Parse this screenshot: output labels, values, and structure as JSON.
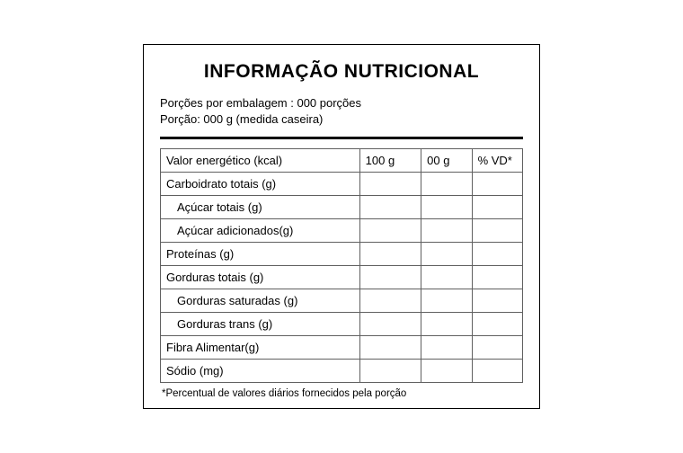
{
  "title": "INFORMAÇÃO NUTRICIONAL",
  "serving": {
    "line1": "Porções por embalagem : 000 porções",
    "line2": "Porção: 000 g (medida caseira)"
  },
  "headers": {
    "col1": "100 g",
    "col2": "00 g",
    "col3": "% VD*"
  },
  "rows": [
    {
      "label": "Valor energético (kcal)",
      "indent": false,
      "c1": "",
      "c2": "",
      "c3": ""
    },
    {
      "label": "Carboidrato totais (g)",
      "indent": false,
      "c1": "",
      "c2": "",
      "c3": ""
    },
    {
      "label": "Açúcar totais (g)",
      "indent": true,
      "c1": "",
      "c2": "",
      "c3": ""
    },
    {
      "label": "Açúcar adicionados(g)",
      "indent": true,
      "c1": "",
      "c2": "",
      "c3": ""
    },
    {
      "label": "Proteínas (g)",
      "indent": false,
      "c1": "",
      "c2": "",
      "c3": ""
    },
    {
      "label": "Gorduras totais (g)",
      "indent": false,
      "c1": "",
      "c2": "",
      "c3": ""
    },
    {
      "label": "Gorduras saturadas (g)",
      "indent": true,
      "c1": "",
      "c2": "",
      "c3": ""
    },
    {
      "label": "Gorduras trans (g)",
      "indent": true,
      "c1": "",
      "c2": "",
      "c3": ""
    },
    {
      "label": "Fibra Alimentar(g)",
      "indent": false,
      "c1": "",
      "c2": "",
      "c3": ""
    },
    {
      "label": "Sódio (mg)",
      "indent": false,
      "c1": "",
      "c2": "",
      "c3": ""
    }
  ],
  "footnote": "*Percentual de valores diários fornecidos pela porção",
  "colors": {
    "border": "#000000",
    "cell_border": "#606060",
    "background": "#ffffff",
    "text": "#000000"
  }
}
